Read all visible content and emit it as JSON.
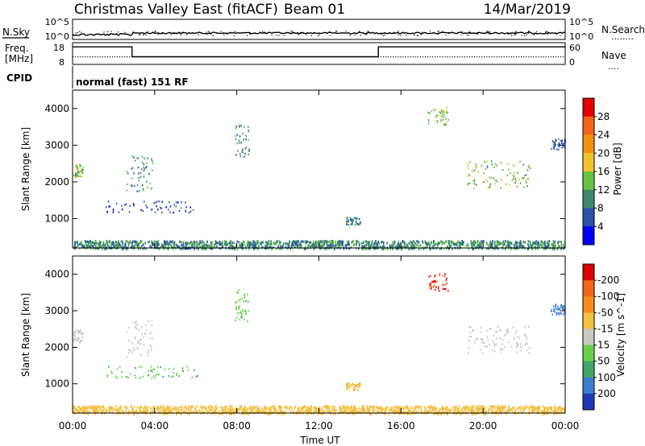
{
  "header": {
    "site": "Christmas Valley East (fitACF)",
    "beam": "Beam 01",
    "date": "14/Mar/2019"
  },
  "panels": {
    "nsky": {
      "label": "N.Sky",
      "ticks_left": [
        "10^5",
        "10^0"
      ],
      "right_label": "N.Search",
      "ticks_right": [
        "10^5",
        "10^0"
      ],
      "right_legend": "........"
    },
    "freq": {
      "label_line1": "Freq.",
      "label_line2": "[MHz]",
      "ticks_left": [
        "18",
        "8"
      ],
      "right_label": "Nave",
      "ticks_right": [
        "60",
        "0"
      ],
      "right_legend": "....",
      "freq_segments": [
        {
          "t0": 0.0,
          "t1": 2.9,
          "mhz": 17.0
        },
        {
          "t0": 2.9,
          "t1": 14.9,
          "mhz": 11.4
        },
        {
          "t0": 14.9,
          "t1": 24.0,
          "mhz": 17.0
        }
      ]
    },
    "cpid": {
      "label": "CPID",
      "text": "normal (fast) 151 RF"
    }
  },
  "chart_data": [
    {
      "type": "scatter",
      "name": "power",
      "ylabel": "Slant Range [km]",
      "xlabel": "",
      "xlim": [
        0,
        24
      ],
      "ylim": [
        200,
        4500
      ],
      "y_ticks": [
        "1000",
        "2000",
        "3000",
        "4000"
      ],
      "colorbar": {
        "label": "Power [dB]",
        "ticks": [
          "4",
          "8",
          "12",
          "16",
          "20",
          "24",
          "28"
        ],
        "colors": [
          "#0000ff",
          "#2a52a6",
          "#3e8a6e",
          "#66c241",
          "#f2c22e",
          "#f59211",
          "#f4641a",
          "#e60000"
        ]
      },
      "clusters": [
        {
          "t0": 1.6,
          "t1": 6.2,
          "r0": 1180,
          "r1": 1500,
          "db": 5
        },
        {
          "t0": 2.6,
          "t1": 3.9,
          "r0": 1750,
          "r1": 2750,
          "db": 9
        },
        {
          "t0": 0.0,
          "t1": 0.5,
          "r0": 2150,
          "r1": 2500,
          "db": 14
        },
        {
          "t0": 7.9,
          "t1": 8.6,
          "r0": 2700,
          "r1": 3600,
          "db": 10
        },
        {
          "t0": 13.3,
          "t1": 14.0,
          "r0": 850,
          "r1": 1050,
          "db": 9
        },
        {
          "t0": 17.3,
          "t1": 18.3,
          "r0": 3550,
          "r1": 4050,
          "db": 13
        },
        {
          "t0": 19.2,
          "t1": 22.3,
          "r0": 1850,
          "r1": 2600,
          "db": 15
        },
        {
          "t0": 23.3,
          "t1": 24.0,
          "r0": 2900,
          "r1": 3200,
          "db": 5
        },
        {
          "t0": 0.0,
          "t1": 24.0,
          "r0": 200,
          "r1": 420,
          "db": 9
        }
      ]
    },
    {
      "type": "scatter",
      "name": "velocity",
      "ylabel": "Slant Range [km]",
      "xlabel": "Time UT",
      "xlim": [
        0,
        24
      ],
      "ylim": [
        200,
        4500
      ],
      "x_ticks": [
        "00:00",
        "04:00",
        "08:00",
        "12:00",
        "16:00",
        "20:00",
        "00:00"
      ],
      "y_ticks": [
        "1000",
        "2000",
        "3000",
        "4000"
      ],
      "colorbar": {
        "label": "Velocity [m s^-1]",
        "ticks": [
          "200",
          "100",
          "50",
          "15",
          "-15",
          "-50",
          "-100",
          "-200"
        ],
        "colors": [
          "#1f3ab4",
          "#3a7ed0",
          "#3fa56a",
          "#6ad04a",
          "#c8c8c0",
          "#f3c040",
          "#f58c1e",
          "#f3651a",
          "#e00000"
        ]
      },
      "clusters": [
        {
          "t0": 1.6,
          "t1": 6.2,
          "r0": 1180,
          "r1": 1500,
          "v": 40
        },
        {
          "t0": 2.6,
          "t1": 3.9,
          "r0": 1750,
          "r1": 2750,
          "v": 0
        },
        {
          "t0": 0.0,
          "t1": 0.5,
          "r0": 2150,
          "r1": 2500,
          "v": 0
        },
        {
          "t0": 7.9,
          "t1": 8.6,
          "r0": 2700,
          "r1": 3600,
          "v": 40
        },
        {
          "t0": 13.3,
          "t1": 14.0,
          "r0": 850,
          "r1": 1050,
          "v": -40
        },
        {
          "t0": 17.3,
          "t1": 18.3,
          "r0": 3550,
          "r1": 4050,
          "v": -200
        },
        {
          "t0": 19.2,
          "t1": 22.3,
          "r0": 1850,
          "r1": 2600,
          "v": 0
        },
        {
          "t0": 23.3,
          "t1": 24.0,
          "r0": 2900,
          "r1": 3200,
          "v": 150
        },
        {
          "t0": 0.0,
          "t1": 24.0,
          "r0": 200,
          "r1": 420,
          "v": -30
        }
      ]
    }
  ]
}
